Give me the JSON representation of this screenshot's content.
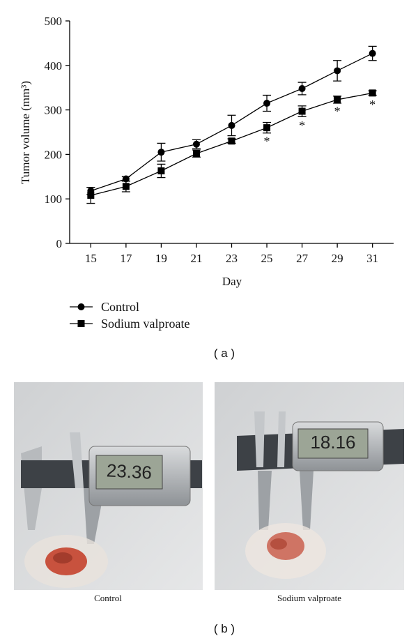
{
  "chart_data": {
    "type": "line",
    "x_label": "Day",
    "y_label": "Tumor volume (mm³)",
    "x": [
      15,
      17,
      19,
      21,
      23,
      25,
      27,
      29,
      31
    ],
    "xlim": [
      13.8,
      32.2
    ],
    "xticks": [
      15,
      17,
      19,
      21,
      23,
      25,
      27,
      29,
      31
    ],
    "ylim": [
      0,
      500
    ],
    "yticks": [
      0,
      100,
      200,
      300,
      400,
      500
    ],
    "series": [
      {
        "name": "Control",
        "color": "#000000",
        "marker": "circle",
        "values": [
          118,
          145,
          205,
          223,
          265,
          315,
          348,
          388,
          427
        ],
        "errors": [
          8,
          5,
          20,
          10,
          23,
          18,
          14,
          23,
          16
        ]
      },
      {
        "name": "Sodium valproate",
        "color": "#000000",
        "marker": "square",
        "values": [
          108,
          128,
          163,
          202,
          230,
          260,
          297,
          323,
          338
        ],
        "errors": [
          18,
          12,
          15,
          8,
          5,
          12,
          12,
          8,
          5
        ]
      }
    ],
    "annotations": [
      {
        "x": 25,
        "y": 233,
        "text": "*"
      },
      {
        "x": 27,
        "y": 268,
        "text": "*"
      },
      {
        "x": 29,
        "y": 300,
        "text": "*"
      },
      {
        "x": 31,
        "y": 315,
        "text": "*"
      }
    ],
    "legend": "below"
  },
  "panel_labels": [
    "( a )",
    "( b )"
  ],
  "photos": [
    {
      "caption": "Control",
      "display": "23.36"
    },
    {
      "caption": "Sodium valproate",
      "display": "18.16"
    }
  ]
}
